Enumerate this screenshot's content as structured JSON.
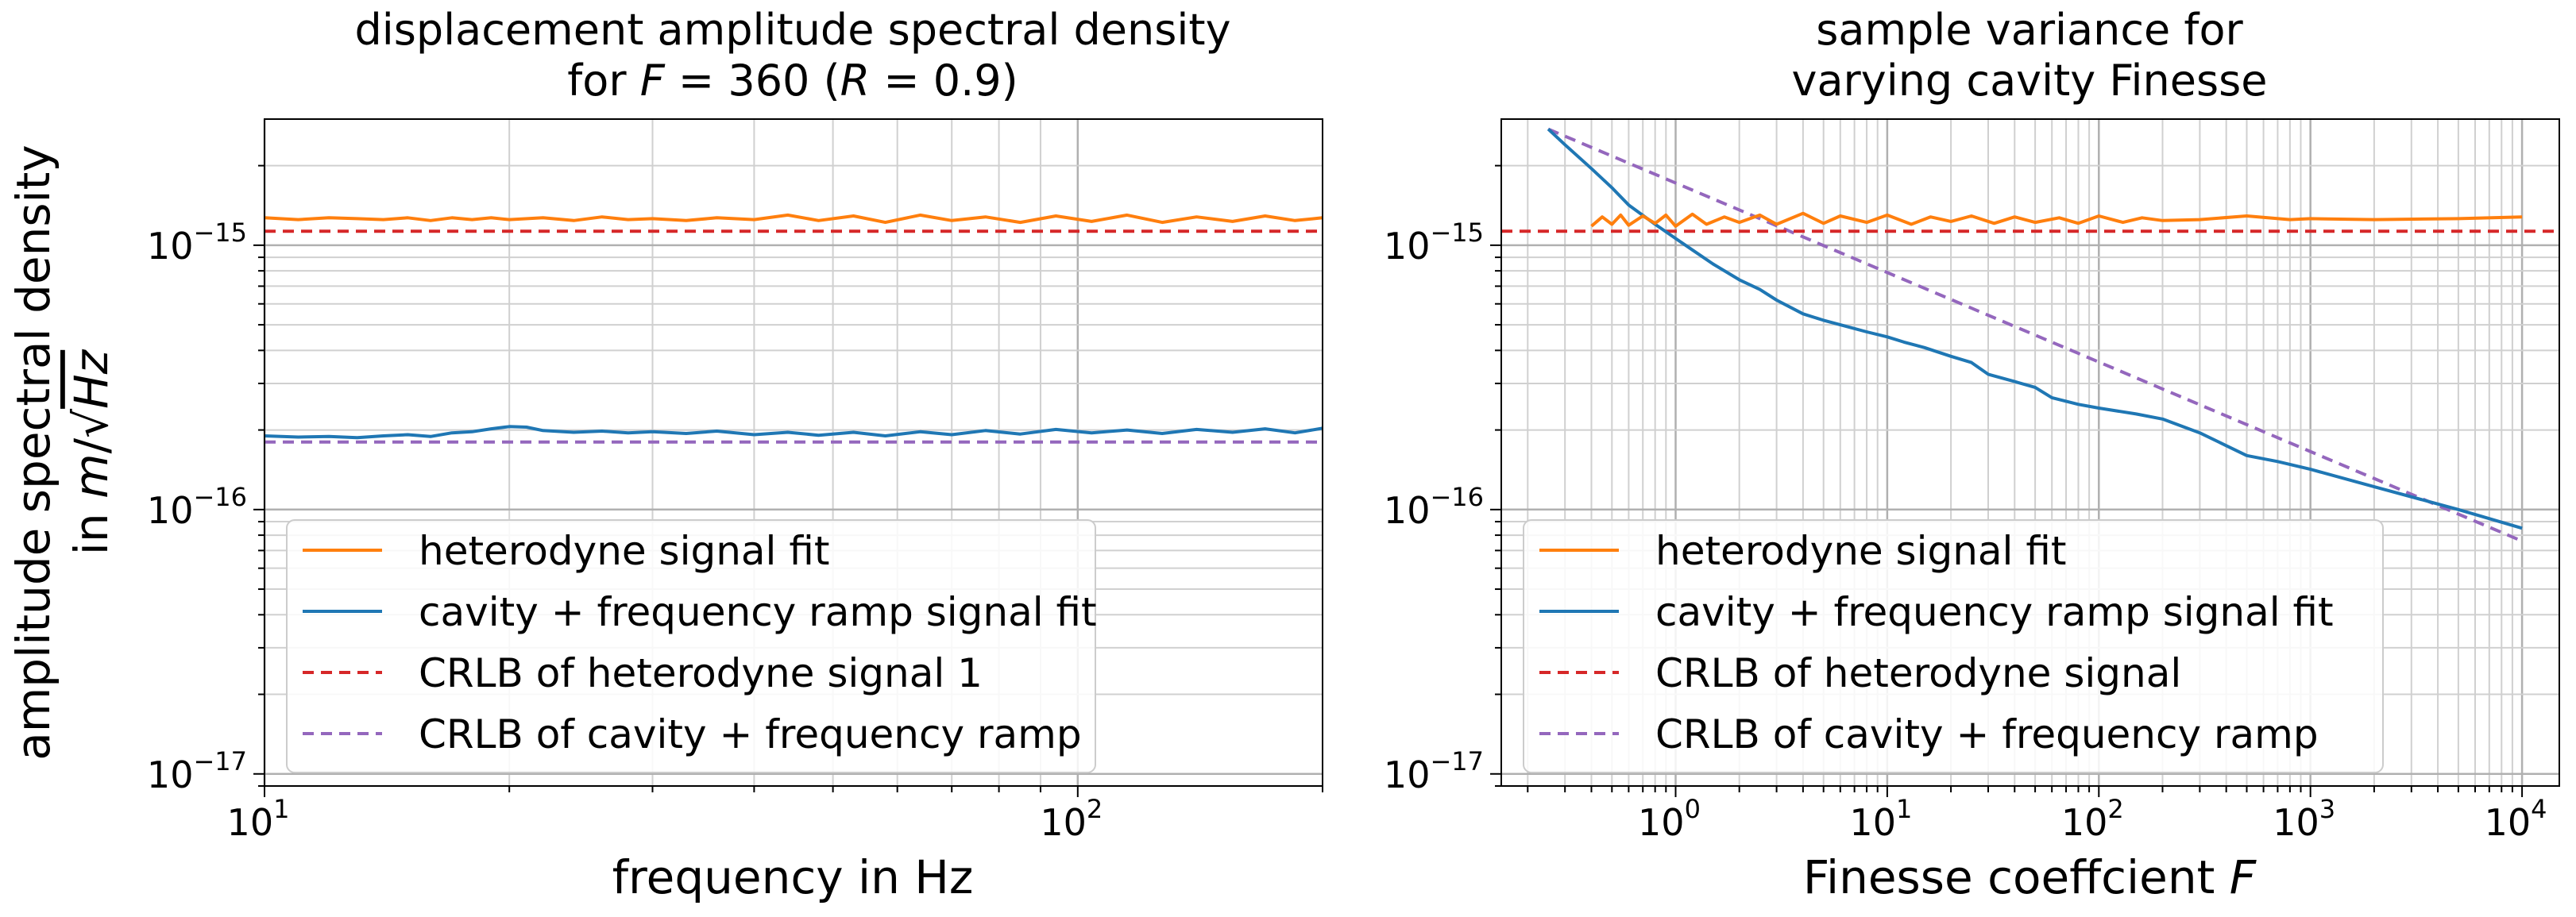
{
  "chart_data": [
    {
      "type": "line",
      "title_line1": "displacement amplitude spectral density",
      "title_line2_prefix": "for ",
      "title_var": "F",
      "title_eq": " = 360 (",
      "title_var2": "R",
      "title_eq2": " = 0.9)",
      "xlabel": "frequency in Hz",
      "ylabel_line1": "amplitude spectral density",
      "ylabel_line2_in": "in ",
      "ylabel_line2_m": "m",
      "ylabel_line2_slash": "/",
      "ylabel_line2_sqrt": "√",
      "ylabel_line2_hz": "Hz",
      "xscale": "log",
      "yscale": "log",
      "xlim": [
        10,
        200
      ],
      "ylim": [
        9e-18,
        3e-15
      ],
      "xticks": [
        {
          "base": "10",
          "exp": "1",
          "value": 10
        },
        {
          "base": "10",
          "exp": "2",
          "value": 100
        }
      ],
      "yticks": [
        {
          "base": "10",
          "exp": "−15",
          "value": 1e-15
        },
        {
          "base": "10",
          "exp": "−16",
          "value": 1e-16
        },
        {
          "base": "10",
          "exp": "−17",
          "value": 1e-17
        }
      ],
      "grid": true,
      "legend_position": "lower-left",
      "series": [
        {
          "name": "heterodyne signal fit",
          "color": "#ff7f0e",
          "style": "solid",
          "x": [
            10,
            11,
            12,
            13,
            14,
            15,
            16,
            17,
            18,
            19,
            20,
            22,
            24,
            26,
            28,
            30,
            33,
            36,
            40,
            44,
            48,
            53,
            58,
            64,
            70,
            77,
            85,
            94,
            104,
            115,
            127,
            140,
            155,
            170,
            185,
            200
          ],
          "y": [
            1.27e-15,
            1.25e-15,
            1.27e-15,
            1.26e-15,
            1.25e-15,
            1.27e-15,
            1.24e-15,
            1.27e-15,
            1.25e-15,
            1.27e-15,
            1.25e-15,
            1.27e-15,
            1.24e-15,
            1.28e-15,
            1.25e-15,
            1.26e-15,
            1.24e-15,
            1.27e-15,
            1.25e-15,
            1.3e-15,
            1.24e-15,
            1.29e-15,
            1.22e-15,
            1.3e-15,
            1.24e-15,
            1.28e-15,
            1.22e-15,
            1.29e-15,
            1.23e-15,
            1.3e-15,
            1.22e-15,
            1.28e-15,
            1.23e-15,
            1.29e-15,
            1.24e-15,
            1.27e-15
          ]
        },
        {
          "name": "cavity + frequency ramp signal fit",
          "color": "#1f77b4",
          "style": "solid",
          "x": [
            10,
            11,
            12,
            13,
            14,
            15,
            16,
            17,
            18,
            19,
            20,
            21,
            22,
            24,
            26,
            28,
            30,
            33,
            36,
            40,
            44,
            48,
            53,
            58,
            64,
            70,
            77,
            85,
            94,
            104,
            115,
            127,
            140,
            155,
            170,
            185,
            200
          ],
          "y": [
            1.9e-16,
            1.88e-16,
            1.89e-16,
            1.87e-16,
            1.9e-16,
            1.92e-16,
            1.89e-16,
            1.95e-16,
            1.97e-16,
            2.02e-16,
            2.06e-16,
            2.05e-16,
            1.99e-16,
            1.96e-16,
            1.98e-16,
            1.95e-16,
            1.97e-16,
            1.94e-16,
            1.98e-16,
            1.92e-16,
            1.96e-16,
            1.91e-16,
            1.96e-16,
            1.9e-16,
            1.97e-16,
            1.92e-16,
            1.99e-16,
            1.93e-16,
            2.01e-16,
            1.95e-16,
            2e-16,
            1.94e-16,
            2.01e-16,
            1.96e-16,
            2.02e-16,
            1.95e-16,
            2.03e-16
          ]
        },
        {
          "name": "CRLB of heterodyne signal 1",
          "color": "#d62728",
          "style": "dashed",
          "x": [
            10,
            200
          ],
          "y": [
            1.13e-15,
            1.13e-15
          ]
        },
        {
          "name": "CRLB of cavity + frequency ramp",
          "color": "#9467bd",
          "style": "dashed",
          "x": [
            10,
            200
          ],
          "y": [
            1.8e-16,
            1.8e-16
          ]
        }
      ]
    },
    {
      "type": "line",
      "title_line1": "sample variance for",
      "title_line2": "varying cavity Finesse",
      "xlabel_text": "Finesse coeffcient  ",
      "xlabel_var": "F",
      "xscale": "log",
      "yscale": "log",
      "xlim": [
        0.15,
        15000
      ],
      "ylim": [
        9e-18,
        3e-15
      ],
      "xticks": [
        {
          "base": "10",
          "exp": "0",
          "value": 1
        },
        {
          "base": "10",
          "exp": "1",
          "value": 10
        },
        {
          "base": "10",
          "exp": "2",
          "value": 100
        },
        {
          "base": "10",
          "exp": "3",
          "value": 1000
        },
        {
          "base": "10",
          "exp": "4",
          "value": 10000
        }
      ],
      "yticks": [
        {
          "base": "10",
          "exp": "−15",
          "value": 1e-15
        },
        {
          "base": "10",
          "exp": "−16",
          "value": 1e-16
        },
        {
          "base": "10",
          "exp": "−17",
          "value": 1e-17
        }
      ],
      "grid": true,
      "legend_position": "lower-left",
      "series": [
        {
          "name": "heterodyne signal fit",
          "color": "#ff7f0e",
          "style": "solid",
          "x": [
            0.4,
            0.45,
            0.5,
            0.55,
            0.6,
            0.7,
            0.8,
            0.9,
            1,
            1.2,
            1.4,
            1.7,
            2,
            2.5,
            3,
            4,
            5,
            6,
            8,
            10,
            13,
            16,
            20,
            25,
            32,
            40,
            50,
            65,
            80,
            100,
            130,
            160,
            200,
            300,
            500,
            800,
            1000,
            2000,
            5000,
            10000
          ],
          "y": [
            1.18e-15,
            1.28e-15,
            1.2e-15,
            1.3e-15,
            1.19e-15,
            1.29e-15,
            1.21e-15,
            1.3e-15,
            1.18e-15,
            1.31e-15,
            1.2e-15,
            1.28e-15,
            1.22e-15,
            1.3e-15,
            1.2e-15,
            1.32e-15,
            1.21e-15,
            1.29e-15,
            1.22e-15,
            1.3e-15,
            1.2e-15,
            1.28e-15,
            1.23e-15,
            1.29e-15,
            1.21e-15,
            1.28e-15,
            1.22e-15,
            1.27e-15,
            1.21e-15,
            1.29e-15,
            1.22e-15,
            1.27e-15,
            1.24e-15,
            1.25e-15,
            1.29e-15,
            1.25e-15,
            1.26e-15,
            1.25e-15,
            1.26e-15,
            1.28e-15
          ]
        },
        {
          "name": "cavity + frequency ramp signal fit",
          "color": "#1f77b4",
          "style": "solid",
          "x": [
            0.25,
            0.3,
            0.4,
            0.5,
            0.6,
            0.8,
            1,
            1.2,
            1.5,
            2,
            2.5,
            3,
            4,
            5,
            6,
            8,
            10,
            12,
            15,
            20,
            25,
            30,
            40,
            50,
            60,
            80,
            100,
            150,
            200,
            300,
            500,
            700,
            1000,
            2000,
            5000,
            10000
          ],
          "y": [
            2.75e-15,
            2.4e-15,
            1.95e-15,
            1.65e-15,
            1.42e-15,
            1.2e-15,
            1.06e-15,
            9.6e-16,
            8.5e-16,
            7.4e-16,
            6.8e-16,
            6.2e-16,
            5.5e-16,
            5.2e-16,
            5e-16,
            4.7e-16,
            4.5e-16,
            4.3e-16,
            4.1e-16,
            3.8e-16,
            3.6e-16,
            3.25e-16,
            3.05e-16,
            2.9e-16,
            2.65e-16,
            2.5e-16,
            2.42e-16,
            2.3e-16,
            2.2e-16,
            1.95e-16,
            1.6e-16,
            1.52e-16,
            1.42e-16,
            1.22e-16,
            1e-16,
            8.5e-17
          ]
        },
        {
          "name": "CRLB of heterodyne signal",
          "color": "#d62728",
          "style": "dashed",
          "x": [
            0.15,
            15000
          ],
          "y": [
            1.13e-15,
            1.13e-15
          ]
        },
        {
          "name": "CRLB of cavity + frequency ramp",
          "color": "#9467bd",
          "style": "dashed",
          "x": [
            0.25,
            10000
          ],
          "y": [
            2.75e-15,
            7.6e-17
          ]
        }
      ]
    }
  ]
}
